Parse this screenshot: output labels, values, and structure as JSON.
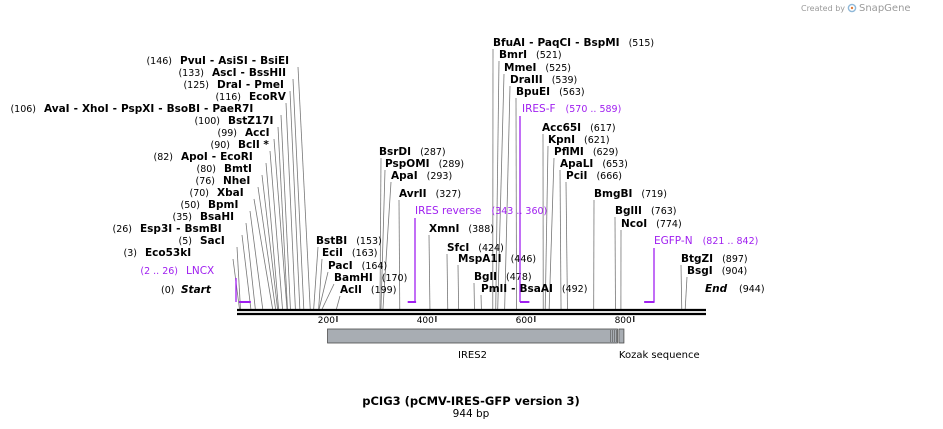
{
  "credit": {
    "prefix": "Created by",
    "brand": "SnapGene"
  },
  "plasmid": {
    "name": "pCIG3 (pCMV-IRES-GFP version 3)",
    "length": "944 bp",
    "total_bp": 944
  },
  "start_label": {
    "pos": "(0)",
    "name": "Start"
  },
  "end_label": {
    "name": "End",
    "pos": "(944)"
  },
  "ticks": [
    {
      "label": "200",
      "pos": 200
    },
    {
      "label": "400",
      "pos": 400
    },
    {
      "label": "600",
      "pos": 600
    },
    {
      "label": "800",
      "pos": 800
    }
  ],
  "sites": [
    {
      "parts": [
        "PvuI",
        "AsiSI",
        "BsiEI"
      ],
      "pos": "(146)",
      "pos_side": "left",
      "bp": 146
    },
    {
      "parts": [
        "AscI",
        "BssHII"
      ],
      "pos": "(133)",
      "pos_side": "left",
      "bp": 133
    },
    {
      "parts": [
        "DraI",
        "PmeI"
      ],
      "pos": "(125)",
      "pos_side": "left",
      "bp": 125
    },
    {
      "parts": [
        "EcoRV"
      ],
      "pos": "(116)",
      "pos_side": "left",
      "bp": 116
    },
    {
      "parts": [
        "AvaI",
        "XhoI",
        "PspXI",
        "BsoBI",
        "PaeR7I"
      ],
      "pos": "(106)",
      "pos_side": "left",
      "bp": 106
    },
    {
      "parts": [
        "BstZ17I"
      ],
      "pos": "(100)",
      "pos_side": "left",
      "bp": 100
    },
    {
      "parts": [
        "AccI"
      ],
      "pos": "(99)",
      "pos_side": "left",
      "bp": 99
    },
    {
      "parts": [
        "BclI *"
      ],
      "pos": "(90)",
      "pos_side": "left",
      "bp": 90
    },
    {
      "parts": [
        "ApoI",
        "EcoRI"
      ],
      "pos": "(82)",
      "pos_side": "left",
      "bp": 82
    },
    {
      "parts": [
        "BmtI"
      ],
      "pos": "(80)",
      "pos_side": "left",
      "bp": 80
    },
    {
      "parts": [
        "NheI"
      ],
      "pos": "(76)",
      "pos_side": "left",
      "bp": 76
    },
    {
      "parts": [
        "XbaI"
      ],
      "pos": "(70)",
      "pos_side": "left",
      "bp": 70
    },
    {
      "parts": [
        "BpmI"
      ],
      "pos": "(50)",
      "pos_side": "left",
      "bp": 50
    },
    {
      "parts": [
        "BsaHI"
      ],
      "pos": "(35)",
      "pos_side": "left",
      "bp": 35
    },
    {
      "parts": [
        "Esp3I",
        "BsmBI"
      ],
      "pos": "(26)",
      "pos_side": "left",
      "bp": 26
    },
    {
      "parts": [
        "SacI"
      ],
      "pos": "(5)",
      "pos_side": "left",
      "bp": 5
    },
    {
      "parts": [
        "Eco53kI"
      ],
      "pos": "(3)",
      "pos_side": "left",
      "bp": 3
    },
    {
      "parts": [
        "BstBI"
      ],
      "pos": "(153)",
      "pos_side": "right",
      "bp": 153
    },
    {
      "parts": [
        "EciI"
      ],
      "pos": "(163)",
      "pos_side": "right",
      "bp": 163
    },
    {
      "parts": [
        "PacI"
      ],
      "pos": "(164)",
      "pos_side": "right",
      "bp": 164
    },
    {
      "parts": [
        "BamHI"
      ],
      "pos": "(170)",
      "pos_side": "right",
      "bp": 170
    },
    {
      "parts": [
        "AclI"
      ],
      "pos": "(199)",
      "pos_side": "right",
      "bp": 199
    },
    {
      "parts": [
        "BsrDI"
      ],
      "pos": "(287)",
      "pos_side": "right",
      "bp": 287
    },
    {
      "parts": [
        "PspOMI"
      ],
      "pos": "(289)",
      "pos_side": "right",
      "bp": 289
    },
    {
      "parts": [
        "ApaI"
      ],
      "pos": "(293)",
      "pos_side": "right",
      "bp": 293
    },
    {
      "parts": [
        "AvrII"
      ],
      "pos": "(327)",
      "pos_side": "right",
      "bp": 327
    },
    {
      "parts": [
        "XmnI"
      ],
      "pos": "(388)",
      "pos_side": "right",
      "bp": 388
    },
    {
      "parts": [
        "SfcI"
      ],
      "pos": "(424)",
      "pos_side": "right",
      "bp": 424
    },
    {
      "parts": [
        "MspA1I"
      ],
      "pos": "(446)",
      "pos_side": "right",
      "bp": 446
    },
    {
      "parts": [
        "BglI"
      ],
      "pos": "(478)",
      "pos_side": "right",
      "bp": 478
    },
    {
      "parts": [
        "PmlI",
        "BsaAI"
      ],
      "pos": "(492)",
      "pos_side": "right",
      "bp": 492
    },
    {
      "parts": [
        "BfuAI",
        "PaqCI",
        "BspMI"
      ],
      "pos": "(515)",
      "pos_side": "right",
      "bp": 515
    },
    {
      "parts": [
        "BmrI"
      ],
      "pos": "(521)",
      "pos_side": "right",
      "bp": 521
    },
    {
      "parts": [
        "MmeI"
      ],
      "pos": "(525)",
      "pos_side": "right",
      "bp": 525
    },
    {
      "parts": [
        "DraIII"
      ],
      "pos": "(539)",
      "pos_side": "right",
      "bp": 539
    },
    {
      "parts": [
        "BpuEI"
      ],
      "pos": "(563)",
      "pos_side": "right",
      "bp": 563
    },
    {
      "parts": [
        "Acc65I"
      ],
      "pos": "(617)",
      "pos_side": "right",
      "bp": 617
    },
    {
      "parts": [
        "KpnI"
      ],
      "pos": "(621)",
      "pos_side": "right",
      "bp": 621
    },
    {
      "parts": [
        "PflMI"
      ],
      "pos": "(629)",
      "pos_side": "right",
      "bp": 629
    },
    {
      "parts": [
        "ApaLI"
      ],
      "pos": "(653)",
      "pos_side": "right",
      "bp": 653
    },
    {
      "parts": [
        "PciI"
      ],
      "pos": "(666)",
      "pos_side": "right",
      "bp": 666
    },
    {
      "parts": [
        "BmgBI"
      ],
      "pos": "(719)",
      "pos_side": "right",
      "bp": 719
    },
    {
      "parts": [
        "BglII"
      ],
      "pos": "(763)",
      "pos_side": "right",
      "bp": 763
    },
    {
      "parts": [
        "NcoI"
      ],
      "pos": "(774)",
      "pos_side": "right",
      "bp": 774
    },
    {
      "parts": [
        "BtgZI"
      ],
      "pos": "(897)",
      "pos_side": "right",
      "bp": 897
    },
    {
      "parts": [
        "BsgI"
      ],
      "pos": "(904)",
      "pos_side": "right",
      "bp": 904
    }
  ],
  "primers": [
    {
      "name": "LNCX",
      "pos": "(2 .. 26)",
      "pos_side": "left",
      "start": 2,
      "end": 26
    },
    {
      "name": "IRES reverse",
      "pos": "(343 .. 360)",
      "pos_side": "right",
      "start": 343,
      "end": 360
    },
    {
      "name": "IRES-F",
      "pos": "(570 .. 589)",
      "pos_side": "right",
      "start": 570,
      "end": 589
    },
    {
      "name": "EGFP-N",
      "pos": "(821 .. 842)",
      "pos_side": "right",
      "start": 821,
      "end": 842
    }
  ],
  "features": [
    {
      "name": "IRES2",
      "start": 181,
      "end": 767
    },
    {
      "name": "Kozak sequence",
      "start": 770,
      "end": 780
    }
  ],
  "colors": {
    "primer": "#a020f0",
    "feature_fill": "#a8adb3",
    "feature_stroke": "#4a4a4a",
    "leader": "#777777",
    "credit": "#9a9a9a"
  }
}
